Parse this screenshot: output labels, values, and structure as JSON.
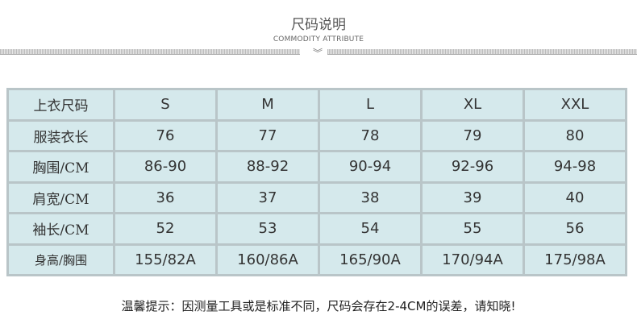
{
  "header": {
    "title": "尺码说明",
    "subtitle": "COMMODITY ATTRIBUTE",
    "divider_icon": "double-chevron-down-icon"
  },
  "table": {
    "rows": [
      {
        "label": "上衣尺码",
        "values": [
          "S",
          "M",
          "L",
          "XL",
          "XXL"
        ]
      },
      {
        "label": "服装衣长",
        "values": [
          "76",
          "77",
          "78",
          "79",
          "80"
        ]
      },
      {
        "label": "胸围/CM",
        "values": [
          "86-90",
          "88-92",
          "90-94",
          "92-96",
          "94-98"
        ]
      },
      {
        "label": "肩宽/CM",
        "values": [
          "36",
          "37",
          "38",
          "39",
          "40"
        ]
      },
      {
        "label": "袖长/CM",
        "values": [
          "52",
          "53",
          "54",
          "55",
          "56"
        ]
      },
      {
        "label": "身高/胸围",
        "values": [
          "155/82A",
          "160/86A",
          "165/90A",
          "170/94A",
          "175/98A"
        ]
      }
    ]
  },
  "note": "温馨提示：因测量工具或是标准不同，尺码会存在2-4CM的误差，请知晓!"
}
